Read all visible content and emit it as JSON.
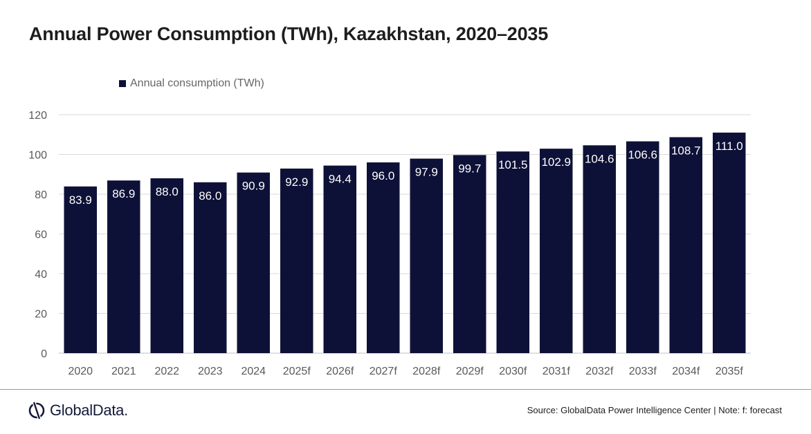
{
  "title": "Annual Power Consumption (TWh), Kazakhstan, 2020–2035",
  "legend_label": "Annual consumption (TWh)",
  "source_note": "Source: GlobalData Power Intelligence Center | Note: f: forecast",
  "logo_text": "GlobalData.",
  "colors": {
    "bar": "#0e1137",
    "grid": "#d9d9d9",
    "axis_text": "#595959",
    "label": "#ffffff"
  },
  "chart_data": {
    "type": "bar",
    "title": "Annual Power Consumption (TWh), Kazakhstan, 2020–2035",
    "xlabel": "",
    "ylabel": "",
    "ylim": [
      0,
      120
    ],
    "yticks": [
      0,
      20,
      40,
      60,
      80,
      100,
      120
    ],
    "categories": [
      "2020",
      "2021",
      "2022",
      "2023",
      "2024",
      "2025f",
      "2026f",
      "2027f",
      "2028f",
      "2029f",
      "2030f",
      "2031f",
      "2032f",
      "2033f",
      "2034f",
      "2035f"
    ],
    "series": [
      {
        "name": "Annual consumption (TWh)",
        "values": [
          83.9,
          86.9,
          88.0,
          86.0,
          90.9,
          92.9,
          94.4,
          96.0,
          97.9,
          99.7,
          101.5,
          102.9,
          104.6,
          106.6,
          108.7,
          111.0
        ],
        "labels": [
          "83.9",
          "86.9",
          "88.0",
          "86.0",
          "90.9",
          "92.9",
          "94.4",
          "96.0",
          "97.9",
          "99.7",
          "101.5",
          "102.9",
          "104.6",
          "106.6",
          "108.7",
          "111.0"
        ]
      }
    ],
    "legend_position": "top-left",
    "grid": true
  }
}
